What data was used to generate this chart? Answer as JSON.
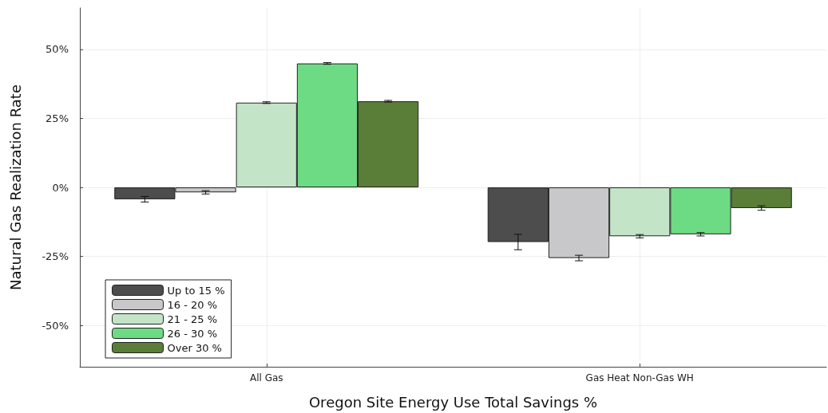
{
  "chart_data": {
    "type": "bar",
    "xlabel": "Oregon Site Energy Use Total Savings %",
    "ylabel": "Natural Gas Realization Rate",
    "categories": [
      "All Gas",
      "Gas Heat Non-Gas WH"
    ],
    "series": [
      {
        "name": "Up to 15 %",
        "color": "#4d4d4d",
        "values": [
          -4.3,
          -19.8
        ],
        "errors": [
          1.0,
          2.8
        ]
      },
      {
        "name": "16 - 20 %",
        "color": "#c8c8ca",
        "values": [
          -1.8,
          -25.6
        ],
        "errors": [
          0.6,
          1.0
        ]
      },
      {
        "name": "21 - 25 %",
        "color": "#c4e4c8",
        "values": [
          30.7,
          -17.7
        ],
        "errors": [
          0.3,
          0.6
        ]
      },
      {
        "name": "26 - 30 %",
        "color": "#6ddb83",
        "values": [
          44.9,
          -17.0
        ],
        "errors": [
          0.3,
          0.6
        ]
      },
      {
        "name": "Over 30 %",
        "color": "#5a7d38",
        "values": [
          31.2,
          -7.5
        ],
        "errors": [
          0.3,
          0.8
        ]
      }
    ],
    "ylim": [
      -65,
      65
    ],
    "yticks": [
      {
        "value": -50,
        "label": "-50%"
      },
      {
        "value": -25,
        "label": "-25%"
      },
      {
        "value": 0,
        "label": "0%"
      },
      {
        "value": 25,
        "label": "25%"
      },
      {
        "value": 50,
        "label": "50%"
      }
    ],
    "grid": true,
    "legend": "bottom left"
  }
}
